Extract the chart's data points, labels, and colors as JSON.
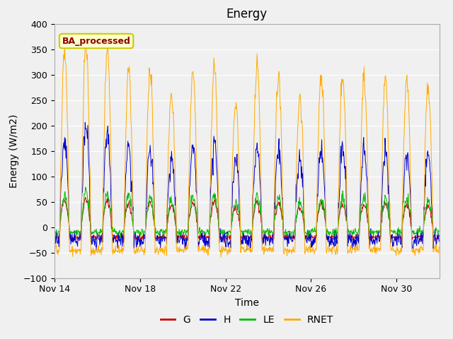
{
  "title": "Energy",
  "xlabel": "Time",
  "ylabel": "Energy (W/m2)",
  "ylim": [
    -100,
    400
  ],
  "yticks": [
    -100,
    -50,
    0,
    50,
    100,
    150,
    200,
    250,
    300,
    350,
    400
  ],
  "n_days": 18,
  "n_per_day": 48,
  "background_color": "#f0f0f0",
  "plot_bg_color": "#f0f0f0",
  "grid_color": "#ffffff",
  "annotation_text": "BA_processed",
  "annotation_text_color": "#8b0000",
  "annotation_box_color": "#ffffcc",
  "annotation_box_edge": "#cccc00",
  "colors": {
    "G": "#cc0000",
    "H": "#0000cc",
    "LE": "#00bb00",
    "RNET": "#ffaa00"
  },
  "legend_labels": [
    "G",
    "H",
    "LE",
    "RNET"
  ],
  "xtick_labels": [
    "Nov 14",
    "Nov 18",
    "Nov 22",
    "Nov 26",
    "Nov 30"
  ],
  "xtick_positions": [
    0,
    4,
    8,
    12,
    16
  ]
}
